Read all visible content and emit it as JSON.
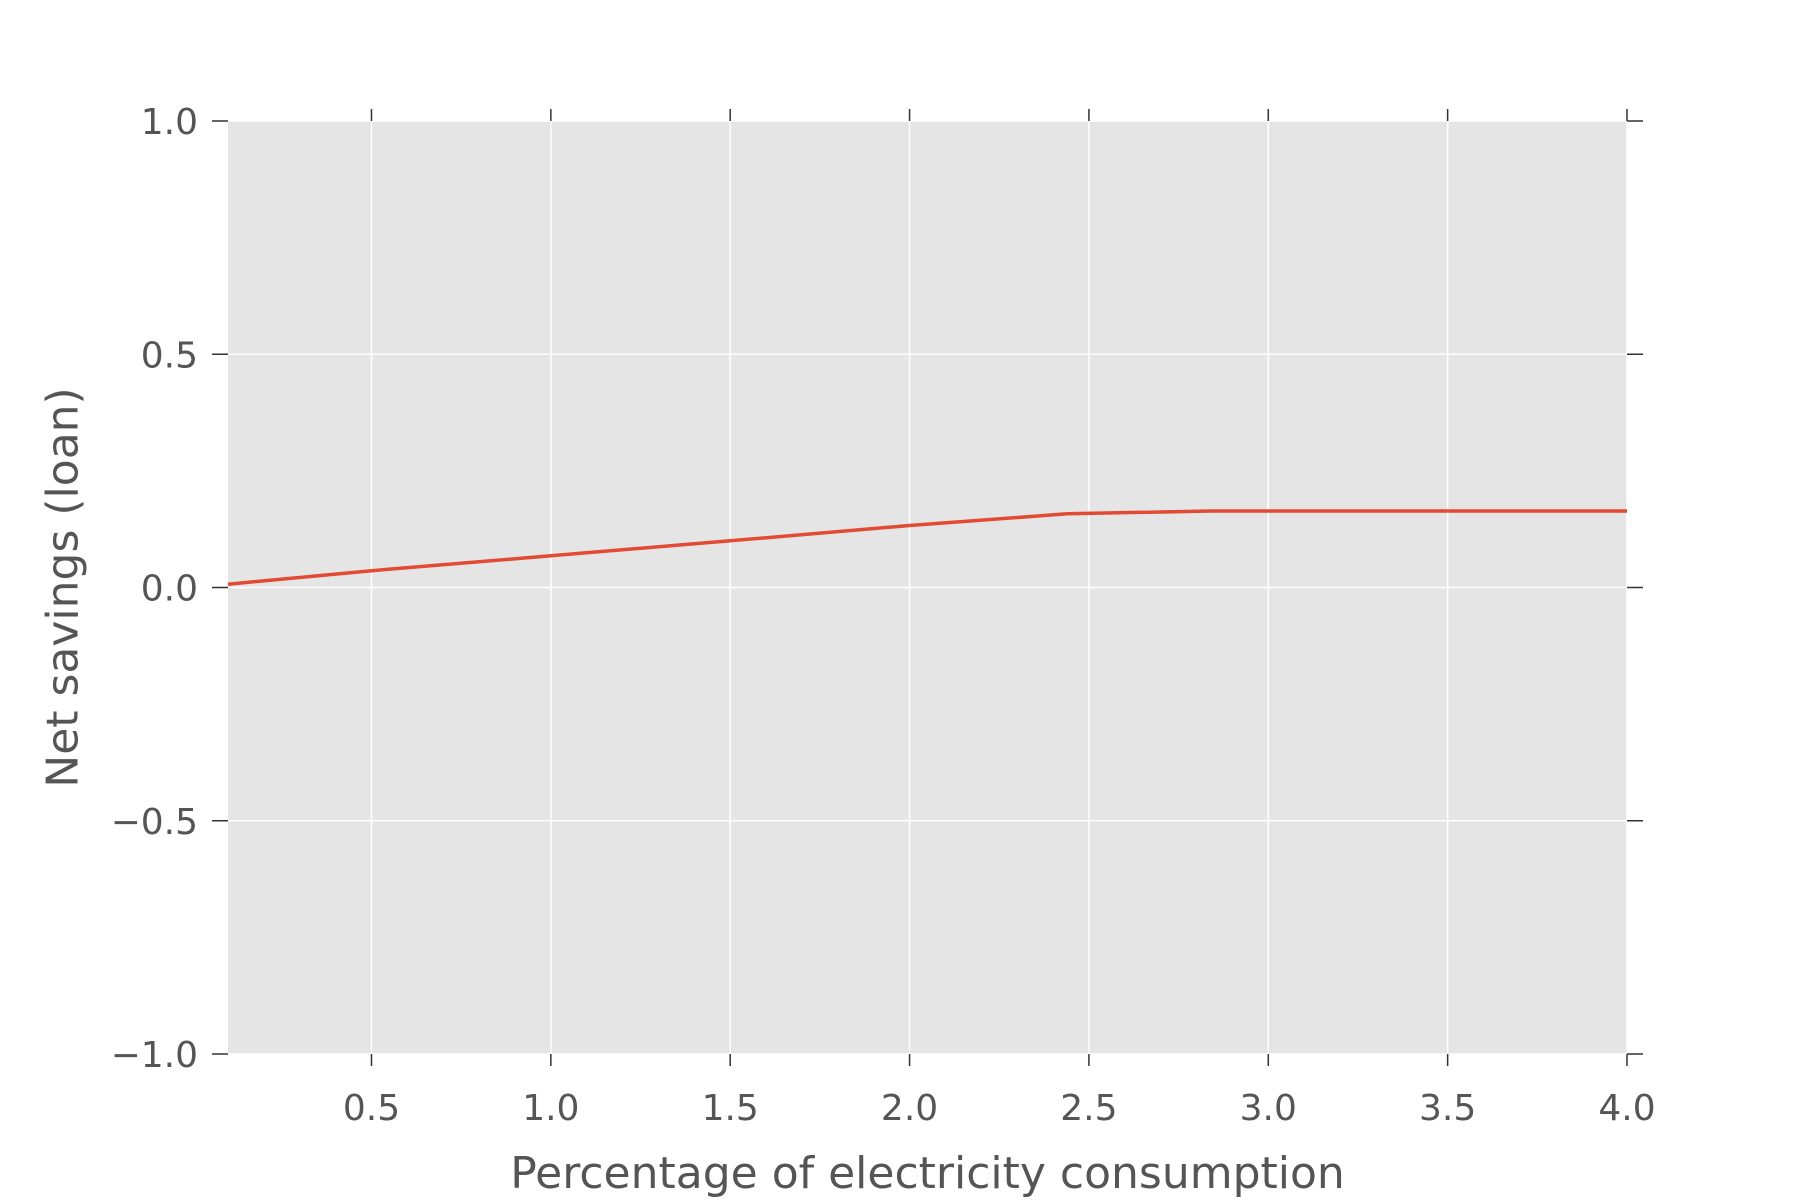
{
  "chart_data": {
    "type": "line",
    "title": "",
    "xlabel": "Percentage of electricity consumption",
    "ylabel": "Net savings (loan)",
    "xlim": [
      0.1,
      4.0
    ],
    "ylim": [
      -1.0,
      1.0
    ],
    "x_ticks": [
      0.5,
      1.0,
      1.5,
      2.0,
      2.5,
      3.0,
      3.5,
      4.0
    ],
    "x_tick_labels": [
      "0.5",
      "1.0",
      "1.5",
      "2.0",
      "2.5",
      "3.0",
      "3.5",
      "4.0"
    ],
    "y_ticks": [
      1.0,
      0.5,
      0.0,
      -0.5,
      -1.0
    ],
    "y_tick_labels": [
      "1.0",
      "0.5",
      "0.0",
      "−0.5",
      "−1.0"
    ],
    "grid": true,
    "background_color": "#e5e5e5",
    "grid_color": "#ffffff",
    "series": [
      {
        "color": "#e24a33",
        "x": [
          0.1,
          0.5,
          1.0,
          1.5,
          2.0,
          2.44,
          2.84,
          3.0,
          3.5,
          4.0
        ],
        "y": [
          0.007,
          0.036,
          0.068,
          0.1,
          0.133,
          0.158,
          0.164,
          0.164,
          0.164,
          0.164
        ]
      }
    ]
  }
}
